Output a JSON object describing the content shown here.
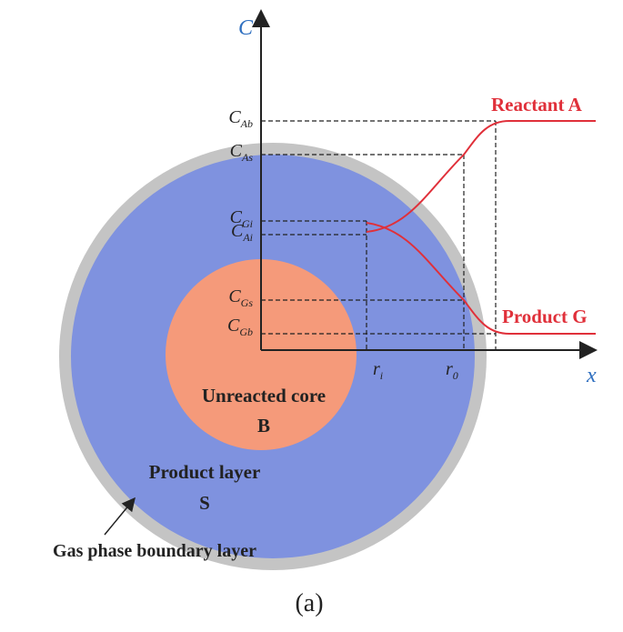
{
  "axes": {
    "y_label": "C",
    "x_label": "x"
  },
  "levels": [
    {
      "symbol": "C",
      "subscript": "Ab"
    },
    {
      "symbol": "C",
      "subscript": "As"
    },
    {
      "symbol": "C",
      "subscript": "Gi"
    },
    {
      "symbol": "C",
      "subscript": "Ai"
    },
    {
      "symbol": "C",
      "subscript": "Gs"
    },
    {
      "symbol": "C",
      "subscript": "Gb"
    }
  ],
  "radii": [
    {
      "symbol": "r",
      "subscript": "i"
    },
    {
      "symbol": "r",
      "subscript": "0"
    }
  ],
  "curves": {
    "reactant": "Reactant  A",
    "product": "Product  G"
  },
  "regions": {
    "core": "Unreacted core",
    "core_symbol": "B",
    "layer": "Product layer",
    "layer_symbol": "S",
    "boundary": "Gas phase boundary layer"
  },
  "caption": "(a)"
}
